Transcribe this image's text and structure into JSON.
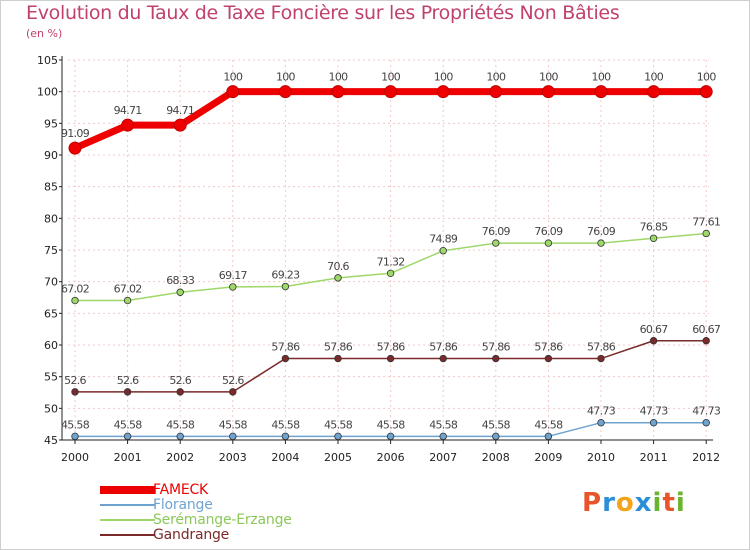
{
  "title": "Evolution du Taux de Taxe Foncière sur les Propriétés Non Bâties",
  "unit_label": "(en %)",
  "logo": {
    "text": "Proxiti",
    "letters": [
      "P",
      "r",
      "o",
      "x",
      "i",
      "t",
      "i"
    ],
    "colors": [
      "#e8552a",
      "#2a8fd6",
      "#f2a51c",
      "#2a8fd6",
      "#6bb42e",
      "#e8552a",
      "#6bb42e"
    ]
  },
  "chart_data": {
    "type": "line",
    "title": "Evolution du Taux de Taxe Foncière sur les Propriétés Non Bâties",
    "xlabel": "",
    "ylabel": "(en %)",
    "ylim": [
      45,
      105
    ],
    "yticks": [
      45,
      50,
      55,
      60,
      65,
      70,
      75,
      80,
      85,
      90,
      95,
      100,
      105
    ],
    "x": [
      "2000",
      "2001",
      "2002",
      "2003",
      "2004",
      "2005",
      "2006",
      "2007",
      "2008",
      "2009",
      "2010",
      "2011",
      "2012"
    ],
    "series": [
      {
        "name": "FAMECK",
        "color": "#ee0000",
        "thick": true,
        "values": [
          91.09,
          94.71,
          94.71,
          100,
          100,
          100,
          100,
          100,
          100,
          100,
          100,
          100,
          100
        ],
        "labels": [
          "91.09",
          "94.71",
          "94.71",
          "100",
          "100",
          "100",
          "100",
          "100",
          "100",
          "100",
          "100",
          "100",
          "100"
        ]
      },
      {
        "name": "Florange",
        "color": "#6fa3cf",
        "thick": false,
        "values": [
          45.58,
          45.58,
          45.58,
          45.58,
          45.58,
          45.58,
          45.58,
          45.58,
          45.58,
          45.58,
          47.73,
          47.73,
          47.73
        ],
        "labels": [
          "45.58",
          "45.58",
          "45.58",
          "45.58",
          "45.58",
          "45.58",
          "45.58",
          "45.58",
          "45.58",
          "45.58",
          "47.73",
          "47.73",
          "47.73"
        ]
      },
      {
        "name": "Serémange-Erzange",
        "color": "#9ed86a",
        "thick": false,
        "values": [
          67.02,
          67.02,
          68.33,
          69.17,
          69.23,
          70.6,
          71.32,
          74.89,
          76.09,
          76.09,
          76.09,
          76.85,
          77.61
        ],
        "labels": [
          "67.02",
          "67.02",
          "68.33",
          "69.17",
          "69.23",
          "70.6",
          "71.32",
          "74.89",
          "76.09",
          "76.09",
          "76.09",
          "76.85",
          "77.61"
        ]
      },
      {
        "name": "Gandrange",
        "color": "#7a2a2a",
        "thick": false,
        "values": [
          52.6,
          52.6,
          52.6,
          52.6,
          57.86,
          57.86,
          57.86,
          57.86,
          57.86,
          57.86,
          57.86,
          60.67,
          60.67
        ],
        "labels": [
          "52.6",
          "52.6",
          "52.6",
          "52.6",
          "57.86",
          "57.86",
          "57.86",
          "57.86",
          "57.86",
          "57.86",
          "57.86",
          "60.67",
          "60.67"
        ]
      }
    ],
    "legend_position": "bottom-left"
  }
}
